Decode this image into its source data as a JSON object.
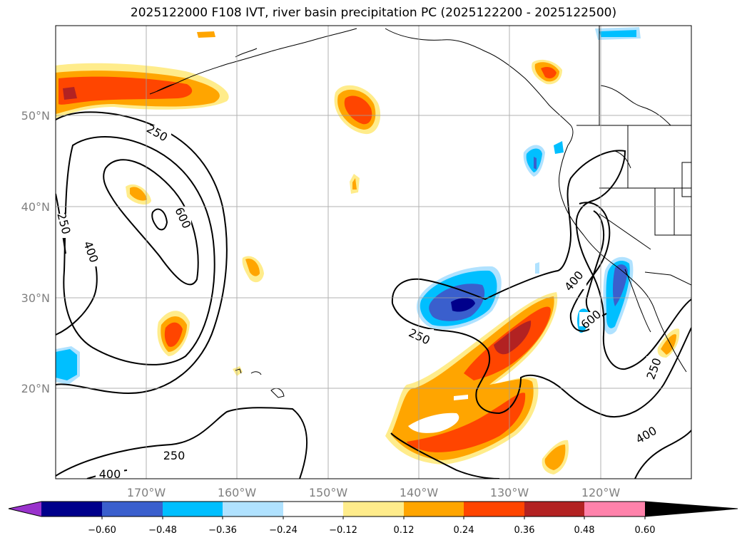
{
  "title": "2025122000 F108 IVT, river basin precipitation PC (2025122200 - 2025122500)",
  "map": {
    "lat_labels": [
      "50°N",
      "40°N",
      "30°N",
      "20°N"
    ],
    "lon_labels": [
      "170°W",
      "160°W",
      "150°W",
      "140°W",
      "130°W",
      "120°W"
    ],
    "ivt_contour_labels": [
      "250",
      "250",
      "400",
      "600",
      "400",
      "250",
      "250",
      "400",
      "600",
      "400",
      "250"
    ]
  },
  "colorbar": {
    "ticks": [
      "−0.60",
      "−0.48",
      "−0.36",
      "−0.24",
      "−0.12",
      "0.12",
      "0.24",
      "0.36",
      "0.48",
      "0.60"
    ],
    "colors": [
      "#9932cc",
      "#00008b",
      "#3a5fcd",
      "#00bfff",
      "#b0e2ff",
      "#ffffff",
      "#ffec8b",
      "#ffa500",
      "#ff4500",
      "#b22222",
      "#ff82ab"
    ]
  }
}
